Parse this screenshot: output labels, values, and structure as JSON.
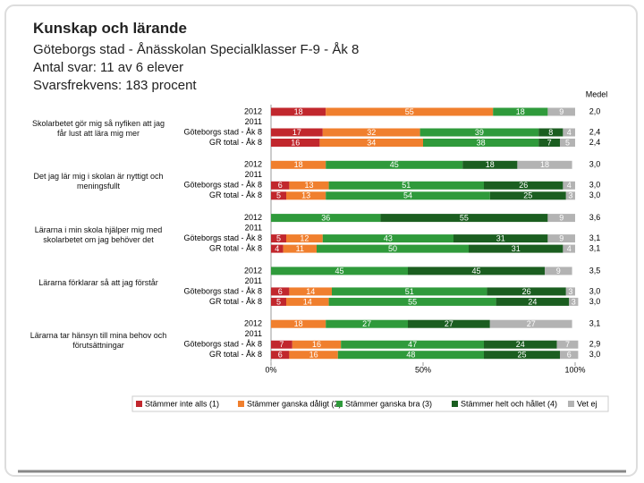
{
  "header": {
    "title": "Kunskap och lärande",
    "lines": [
      "Göteborgs stad - Ånässkolan Specialklasser F-9 - Åk 8",
      "Antal svar: 11 av 6 elever",
      "Svarsfrekvens: 183 procent"
    ]
  },
  "chart_data": {
    "type": "stacked-bar-horizontal",
    "groups": [
      "Skolarbetet gör mig så nyfiken att jag får lust att lära mig mer",
      "Det jag lär mig i skolan är nyttigt och meningsfullt",
      "Lärarna i min skola hjälper mig med skolarbetet om jag behöver det",
      "Lärarna förklarar så att jag förstår",
      "Lärarna tar hänsyn till mina behov och förutsättningar"
    ],
    "categories": [
      "2012",
      "2011",
      "Göteborgs stad - Åk 8",
      "GR total - Åk 8",
      "2012",
      "2011",
      "Göteborgs stad - Åk 8",
      "GR total - Åk 8",
      "2012",
      "2011",
      "Göteborgs stad - Åk 8",
      "GR total - Åk 8",
      "2012",
      "2011",
      "Göteborgs stad - Åk 8",
      "GR total - Åk 8",
      "2012",
      "2011",
      "Göteborgs stad - Åk 8",
      "GR total - Åk 8"
    ],
    "series": [
      {
        "name": "Stämmer inte alls (1)",
        "color": "#c1272d",
        "values": [
          18,
          null,
          17,
          16,
          0,
          null,
          6,
          5,
          0,
          null,
          5,
          4,
          0,
          null,
          6,
          5,
          0,
          null,
          7,
          6
        ]
      },
      {
        "name": "Stämmer ganska dåligt (2)",
        "color": "#f07f2e",
        "values": [
          55,
          null,
          32,
          34,
          18,
          null,
          13,
          13,
          0,
          null,
          12,
          11,
          0,
          null,
          14,
          14,
          18,
          null,
          16,
          16
        ]
      },
      {
        "name": "Stämmer ganska bra (3)",
        "color": "#2f9a3b",
        "values": [
          18,
          null,
          39,
          38,
          45,
          null,
          51,
          54,
          36,
          null,
          43,
          50,
          45,
          null,
          51,
          55,
          27,
          null,
          47,
          48
        ]
      },
      {
        "name": "Stämmer helt och hållet (4)",
        "color": "#1b5e20",
        "values": [
          0,
          null,
          8,
          7,
          18,
          null,
          26,
          25,
          55,
          null,
          31,
          31,
          45,
          null,
          26,
          24,
          27,
          null,
          24,
          25
        ]
      },
      {
        "name": "Vet ej",
        "color": "#b3b3b3",
        "values": [
          9,
          null,
          4,
          5,
          18,
          null,
          4,
          3,
          9,
          null,
          9,
          4,
          9,
          null,
          3,
          3,
          27,
          null,
          7,
          6
        ]
      }
    ],
    "medel": {
      "title": "Medel",
      "values": [
        2.0,
        null,
        2.4,
        2.4,
        3.0,
        null,
        3.0,
        3.0,
        3.6,
        null,
        3.1,
        3.1,
        3.5,
        null,
        3.0,
        3.0,
        3.1,
        null,
        2.9,
        3.0
      ],
      "value_labels": [
        "2,0",
        null,
        "2,4",
        "2,4",
        "3,0",
        null,
        "3,0",
        "3,0",
        "3,6",
        null,
        "3,1",
        "3,1",
        "3,5",
        null,
        "3,0",
        "3,0",
        "3,1",
        null,
        "2,9",
        "3,0"
      ]
    },
    "xlim": [
      0,
      100
    ],
    "xticks": [
      {
        "value": 0,
        "label": "0%"
      },
      {
        "value": 50,
        "label": "50%"
      },
      {
        "value": 100,
        "label": "100%"
      }
    ],
    "legend": "bottom"
  }
}
